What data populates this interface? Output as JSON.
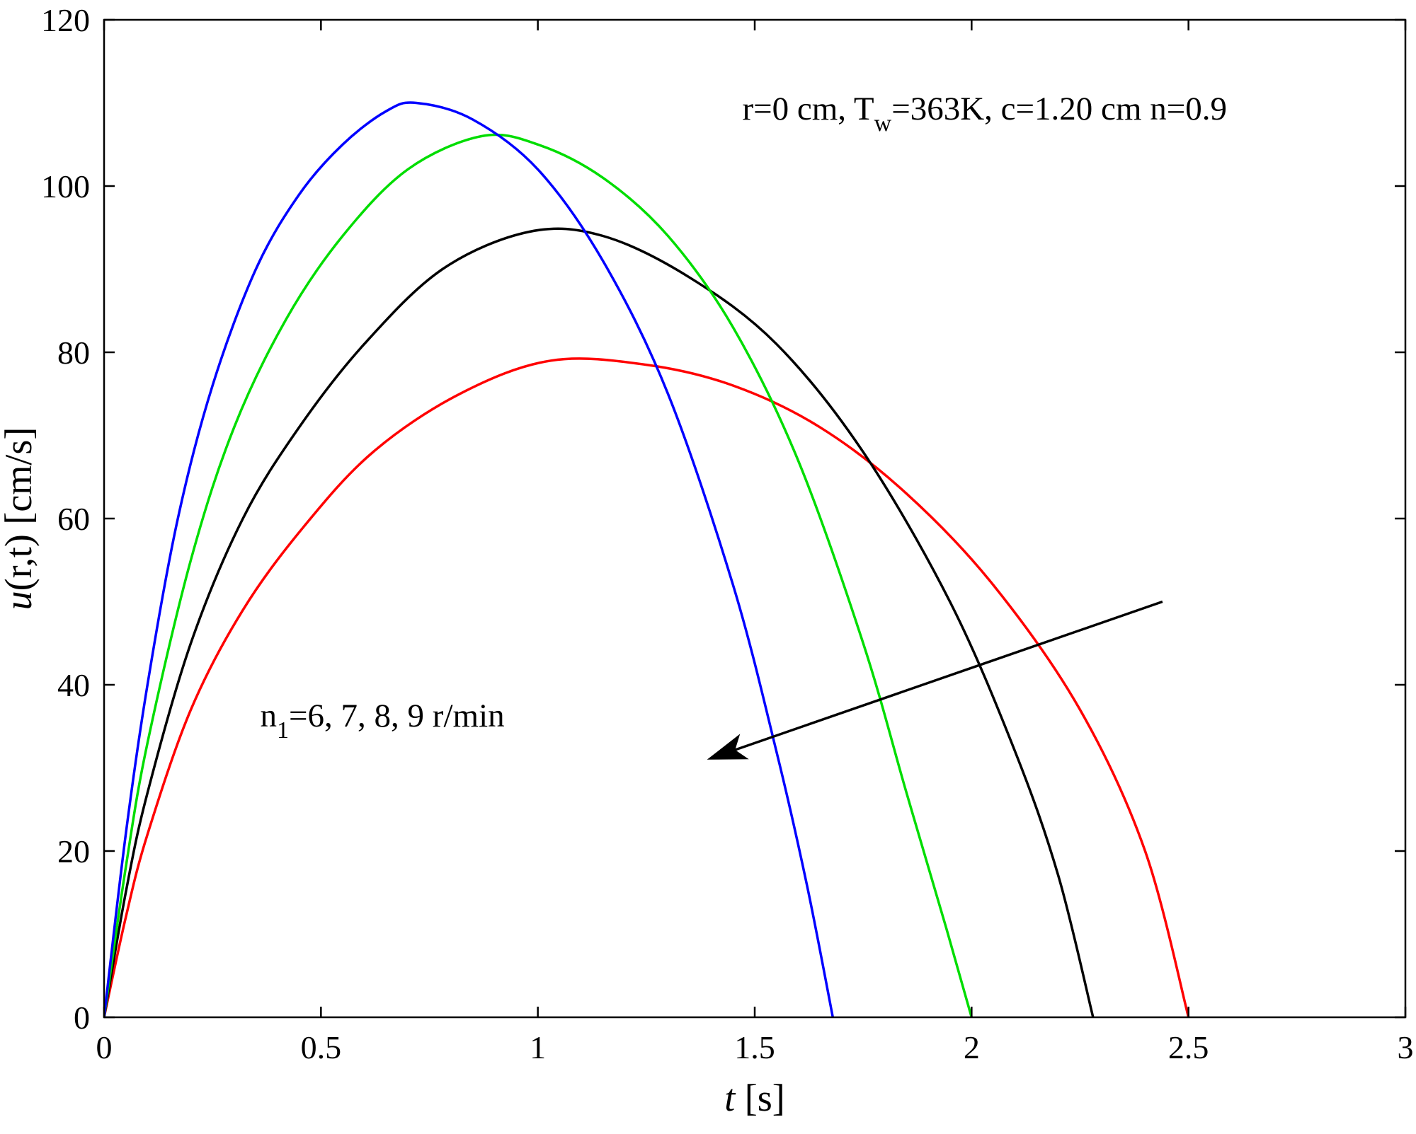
{
  "figure": {
    "background": "#ffffff",
    "axis_color": "#000000"
  },
  "chart_data": {
    "type": "line",
    "xlabel_parts": [
      {
        "text": "t",
        "italic": true
      },
      {
        "text": " [s]"
      }
    ],
    "ylabel_parts": [
      {
        "text": "u",
        "italic": true
      },
      {
        "text": "(r,t) [cm/s]"
      }
    ],
    "xlim": [
      0,
      3
    ],
    "ylim": [
      0,
      120
    ],
    "x_ticks": {
      "values": [
        0,
        0.5,
        1,
        1.5,
        2,
        2.5,
        3
      ],
      "labels": [
        "0",
        "0.5",
        "1",
        "1.5",
        "2",
        "2.5",
        "3"
      ]
    },
    "y_ticks": {
      "values": [
        0,
        20,
        40,
        60,
        80,
        100,
        120
      ],
      "labels": [
        "0",
        "20",
        "40",
        "60",
        "80",
        "100",
        "120"
      ]
    },
    "grid": false,
    "legend": "none",
    "title_annotation": {
      "parts": [
        {
          "text": "r=0 cm, T"
        },
        {
          "text": "w",
          "sub": true
        },
        {
          "text": "=363K, c=1.20 cm n=0.9"
        }
      ],
      "x": 2.03,
      "y": 108
    },
    "curves_annotation": {
      "parts": [
        {
          "text": "n"
        },
        {
          "text": "1",
          "sub": true
        },
        {
          "text": "=6, 7, 8, 9 r/min"
        }
      ],
      "x": 0.36,
      "y": 35
    },
    "arrow": {
      "tail": [
        2.44,
        50
      ],
      "head": [
        1.39,
        31
      ],
      "color": "#000000"
    },
    "series": [
      {
        "name": "n1=6 r/min",
        "color": "#ff0000",
        "peak": 79,
        "zero_crossing": 2.5,
        "x": [
          0,
          0.05,
          0.1,
          0.2,
          0.32,
          0.46,
          0.62,
          0.82,
          1.03,
          1.25,
          1.45,
          1.65,
          1.85,
          2.05,
          2.25,
          2.4,
          2.5
        ],
        "y": [
          0,
          12,
          22,
          37,
          49,
          59,
          68,
          75,
          79,
          78.5,
          76,
          71,
          63,
          52,
          37,
          20,
          0
        ]
      },
      {
        "name": "n1=7 r/min",
        "color": "#000000",
        "peak": 94.5,
        "zero_crossing": 2.28,
        "x": [
          0,
          0.05,
          0.1,
          0.2,
          0.32,
          0.45,
          0.6,
          0.78,
          0.98,
          1.15,
          1.35,
          1.55,
          1.75,
          1.95,
          2.1,
          2.2,
          2.28
        ],
        "y": [
          0,
          15,
          27,
          45,
          60,
          71,
          81,
          90,
          94.5,
          94,
          89,
          81,
          68,
          50,
          32,
          17,
          0
        ]
      },
      {
        "name": "n1=8 r/min",
        "color": "#00dd00",
        "peak": 106,
        "zero_crossing": 2.0,
        "x": [
          0,
          0.05,
          0.1,
          0.2,
          0.3,
          0.42,
          0.55,
          0.7,
          0.87,
          1.0,
          1.15,
          1.3,
          1.45,
          1.6,
          1.75,
          1.85,
          1.94,
          2.0
        ],
        "y": [
          0,
          18,
          33,
          55,
          71,
          84,
          94,
          102,
          106,
          105,
          101,
          94,
          83,
          67,
          45,
          27,
          11,
          0
        ]
      },
      {
        "name": "n1=9 r/min",
        "color": "#0000ff",
        "peak": 110,
        "zero_crossing": 1.68,
        "x": [
          0,
          0.05,
          0.1,
          0.17,
          0.25,
          0.35,
          0.45,
          0.55,
          0.65,
          0.72,
          0.85,
          1.0,
          1.15,
          1.3,
          1.45,
          1.55,
          1.62,
          1.68
        ],
        "y": [
          0,
          22,
          40,
          60,
          76,
          90,
          99,
          105,
          109,
          110,
          108,
          102,
          91,
          75,
          52,
          32,
          16,
          0
        ]
      }
    ]
  }
}
